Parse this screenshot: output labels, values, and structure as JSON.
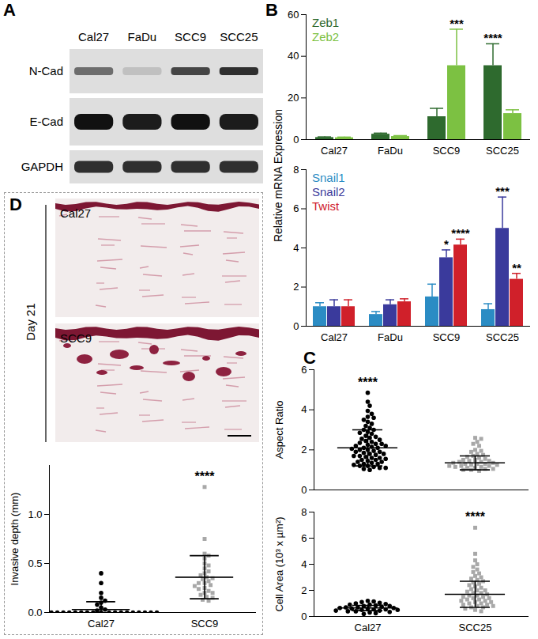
{
  "panel_labels": [
    "A",
    "B",
    "C",
    "D"
  ],
  "blot": {
    "lanes": [
      "Cal27",
      "FaDu",
      "SCC9",
      "SCC25"
    ],
    "rows": [
      {
        "name": "N-Cad",
        "intensity": [
          0.55,
          0.15,
          0.75,
          0.85
        ]
      },
      {
        "name": "E-Cad",
        "intensity": [
          1,
          0.95,
          1,
          0.95
        ]
      },
      {
        "name": "GAPDH",
        "intensity": [
          0.85,
          0.85,
          0.85,
          0.85
        ]
      }
    ]
  },
  "histology": {
    "period": "Day 21",
    "samples": [
      "Cal27",
      "SCC9"
    ]
  },
  "chart_data": [
    {
      "type": "bar",
      "categories": [
        "Cal27",
        "FaDu",
        "SCC9",
        "SCC25"
      ],
      "series": [
        {
          "name": "Zeb1",
          "color": "#2e6a2e",
          "values": [
            1,
            2.6,
            11,
            35.5
          ],
          "errors": [
            0.3,
            0.5,
            4,
            10.5
          ]
        },
        {
          "name": "Zeb2",
          "color": "#7cc142",
          "values": [
            0.9,
            1.5,
            35.5,
            12.5
          ],
          "errors": [
            0.3,
            0.4,
            17.5,
            1.8
          ]
        }
      ],
      "ylim": [
        0,
        60
      ],
      "yticks": [
        0,
        20,
        40,
        60
      ],
      "legend": "top-left",
      "annotations": [
        {
          "category": "SCC9",
          "series": "Zeb2",
          "text": "***"
        },
        {
          "category": "SCC25",
          "series": "Zeb1",
          "text": "****"
        }
      ]
    },
    {
      "type": "bar",
      "y_label": "Relative mRNA Expression",
      "categories": [
        "Cal27",
        "FaDu",
        "SCC9",
        "SCC25"
      ],
      "series": [
        {
          "name": "Snail1",
          "color": "#2b8cc4",
          "values": [
            1,
            0.6,
            1.5,
            0.85
          ],
          "errors": [
            0.2,
            0.15,
            0.65,
            0.3
          ]
        },
        {
          "name": "Snail2",
          "color": "#3a3a9c",
          "values": [
            1,
            1.1,
            3.5,
            5.0
          ],
          "errors": [
            0.35,
            0.25,
            0.4,
            1.6
          ]
        },
        {
          "name": "Twist",
          "color": "#d0202a",
          "values": [
            1,
            1.25,
            4.15,
            2.4
          ],
          "errors": [
            0.35,
            0.15,
            0.3,
            0.3
          ]
        }
      ],
      "ylim": [
        0,
        8
      ],
      "yticks": [
        0,
        2,
        4,
        6,
        8
      ],
      "legend": "top-left",
      "annotations": [
        {
          "category": "SCC9",
          "series": "Snail2",
          "text": "*"
        },
        {
          "category": "SCC9",
          "series": "Twist",
          "text": "****"
        },
        {
          "category": "SCC25",
          "series": "Snail2",
          "text": "***"
        },
        {
          "category": "SCC25",
          "series": "Twist",
          "text": "**"
        }
      ]
    },
    {
      "type": "dot_plot",
      "y_label": "Aspect Ratio",
      "tick_labels": "y",
      "ylim": [
        0,
        6
      ],
      "yticks": [
        0,
        2,
        4,
        6
      ],
      "groups": [
        {
          "name": "Cal27",
          "color": "#000000",
          "marker": "circle",
          "mean": 2.1,
          "sd": 0.9,
          "values": [
            4.85,
            4.4,
            4.2,
            3.95,
            3.8,
            3.65,
            3.6,
            3.5,
            3.4,
            3.3,
            3.2,
            3.1,
            3.0,
            3.0,
            2.9,
            2.85,
            2.8,
            2.7,
            2.65,
            2.6,
            2.55,
            2.5,
            2.45,
            2.4,
            2.35,
            2.3,
            2.3,
            2.25,
            2.2,
            2.2,
            2.15,
            2.1,
            2.1,
            2.05,
            2.0,
            2.0,
            1.95,
            1.9,
            1.9,
            1.85,
            1.8,
            1.8,
            1.75,
            1.7,
            1.7,
            1.65,
            1.6,
            1.6,
            1.55,
            1.5,
            1.5,
            1.45,
            1.4,
            1.4,
            1.35,
            1.3,
            1.3,
            1.25,
            1.2,
            1.2,
            1.15,
            1.1,
            1.1,
            1.05,
            1.0
          ]
        },
        {
          "name": "SCC25",
          "color": "#a8a8a8",
          "marker": "square",
          "mean": 1.35,
          "sd": 0.35,
          "values": [
            2.6,
            2.55,
            2.4,
            2.3,
            2.2,
            2.0,
            1.95,
            1.9,
            1.8,
            1.75,
            1.7,
            1.65,
            1.6,
            1.55,
            1.5,
            1.5,
            1.45,
            1.45,
            1.4,
            1.4,
            1.35,
            1.35,
            1.3,
            1.3,
            1.3,
            1.25,
            1.25,
            1.2,
            1.2,
            1.2,
            1.15,
            1.15,
            1.1,
            1.1,
            1.05,
            1.05,
            1.0,
            1.0,
            0.95
          ]
        }
      ],
      "annotations": [
        {
          "group": "Cal27",
          "text": "****"
        }
      ]
    },
    {
      "type": "dot_plot",
      "y_label": "Cell Area (10³ x µm²)",
      "ylim": [
        0,
        8
      ],
      "yticks": [
        0,
        2,
        4,
        6,
        8
      ],
      "groups": [
        {
          "name": "Cal27",
          "color": "#000000",
          "marker": "circle",
          "mean": 0.65,
          "sd": 0.2,
          "values": [
            1.2,
            1.15,
            1.1,
            1.05,
            1.0,
            0.95,
            0.9,
            0.9,
            0.85,
            0.8,
            0.8,
            0.75,
            0.7,
            0.7,
            0.65,
            0.65,
            0.6,
            0.6,
            0.55,
            0.55,
            0.5,
            0.5,
            0.45,
            0.45,
            0.4,
            0.4,
            0.35,
            0.3,
            0.25,
            0.2
          ]
        },
        {
          "name": "SCC25",
          "color": "#a8a8a8",
          "marker": "square",
          "mean": 1.7,
          "sd": 1.0,
          "values": [
            6.8,
            4.8,
            4.3,
            4.0,
            3.8,
            3.6,
            3.4,
            3.3,
            3.1,
            3.0,
            2.9,
            2.8,
            2.7,
            2.6,
            2.5,
            2.4,
            2.3,
            2.2,
            2.1,
            2.0,
            2.0,
            1.9,
            1.8,
            1.8,
            1.7,
            1.6,
            1.6,
            1.5,
            1.5,
            1.4,
            1.4,
            1.3,
            1.3,
            1.2,
            1.2,
            1.1,
            1.1,
            1.0,
            1.0,
            0.9,
            0.9,
            0.8,
            0.8,
            0.7,
            0.7,
            0.6,
            0.5,
            0.4
          ]
        }
      ],
      "annotations": [
        {
          "group": "SCC25",
          "text": "****"
        }
      ]
    },
    {
      "type": "dot_plot",
      "y_label": "Invasive depth (mm)",
      "ylim": [
        0,
        1.5
      ],
      "yticks": [
        {
          "value": 0,
          "label": "0.0"
        },
        0.5,
        {
          "value": 1,
          "label": "1.0"
        }
      ],
      "groups": [
        {
          "name": "Cal27",
          "color": "#000000",
          "marker": "circle",
          "mean": 0.03,
          "sd": 0.08,
          "values": [
            0.4,
            0.3,
            0.2,
            0.15,
            0.12,
            0.1,
            0.08,
            0.05,
            0.03,
            0.02,
            0,
            0,
            0,
            0,
            0,
            0,
            0,
            0,
            0,
            0,
            0,
            0,
            0,
            0,
            0,
            0,
            0,
            0
          ]
        },
        {
          "name": "SCC9",
          "color": "#a8a8a8",
          "marker": "square",
          "mean": 0.36,
          "sd": 0.22,
          "values": [
            1.28,
            0.75,
            0.6,
            0.58,
            0.55,
            0.5,
            0.48,
            0.45,
            0.42,
            0.4,
            0.38,
            0.36,
            0.35,
            0.34,
            0.32,
            0.3,
            0.3,
            0.28,
            0.27,
            0.25,
            0.24,
            0.22,
            0.2,
            0.2,
            0.18,
            0.16,
            0.15,
            0.13,
            0.12
          ]
        }
      ],
      "annotations": [
        {
          "group": "SCC9",
          "text": "****"
        }
      ]
    }
  ]
}
